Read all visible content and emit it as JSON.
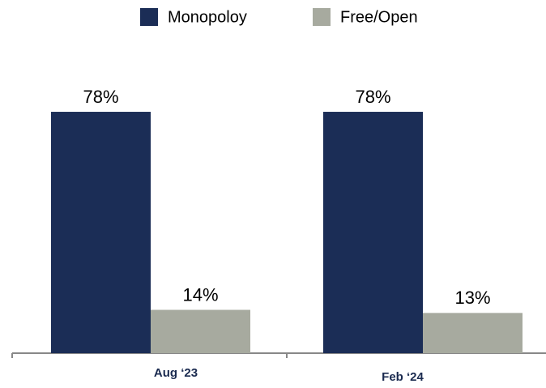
{
  "chart_data": {
    "type": "bar",
    "categories": [
      "Aug ‘23",
      "Feb ‘24"
    ],
    "series": [
      {
        "name": "Monopoloy",
        "color": "#1b2d56",
        "values": [
          78,
          78
        ],
        "value_labels": [
          "78%",
          "78%"
        ]
      },
      {
        "name": "Free/Open",
        "color": "#a7aa9f",
        "values": [
          14,
          13
        ],
        "value_labels": [
          "14%",
          "13%"
        ]
      }
    ]
  }
}
